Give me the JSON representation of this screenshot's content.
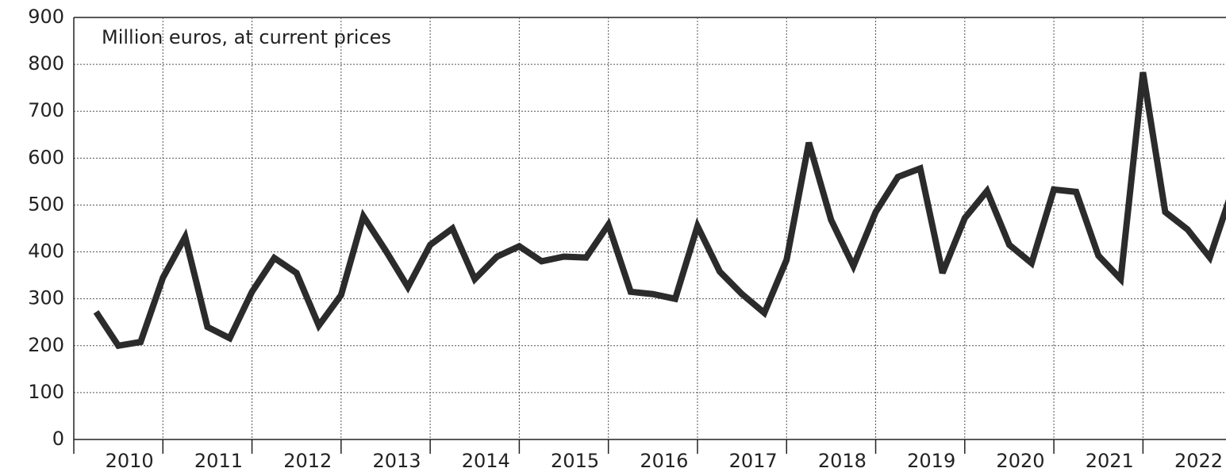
{
  "chart_data": {
    "type": "line",
    "annotation": "Million euros, at current prices",
    "categories": [
      null,
      "2010",
      null,
      null,
      null,
      "2011",
      null,
      null,
      null,
      "2012",
      null,
      null,
      null,
      "2013",
      null,
      null,
      null,
      "2014",
      null,
      null,
      null,
      "2015",
      null,
      null,
      null,
      "2016",
      null,
      null,
      null,
      "2017",
      null,
      null,
      null,
      "2018",
      null,
      null,
      null,
      "2019",
      null,
      null,
      null,
      "2020",
      null,
      null,
      null,
      "2021",
      null,
      null,
      null,
      "2022",
      null,
      null
    ],
    "series": [
      {
        "color": "#2b2b2b",
        "values": [
          272,
          200,
          208,
          345,
          432,
          240,
          216,
          315,
          387,
          355,
          243,
          308,
          476,
          403,
          325,
          415,
          450,
          342,
          390,
          412,
          380,
          390,
          388,
          458,
          315,
          310,
          300,
          455,
          358,
          310,
          270,
          383,
          633,
          468,
          370,
          485,
          560,
          578,
          355,
          472,
          530,
          415,
          376,
          533,
          528,
          392,
          342,
          783,
          485,
          448,
          388,
          530
        ]
      }
    ],
    "ylim": [
      0,
      900
    ],
    "yticks": [
      0,
      100,
      200,
      300,
      400,
      500,
      600,
      700,
      800,
      900
    ],
    "grid": true
  }
}
